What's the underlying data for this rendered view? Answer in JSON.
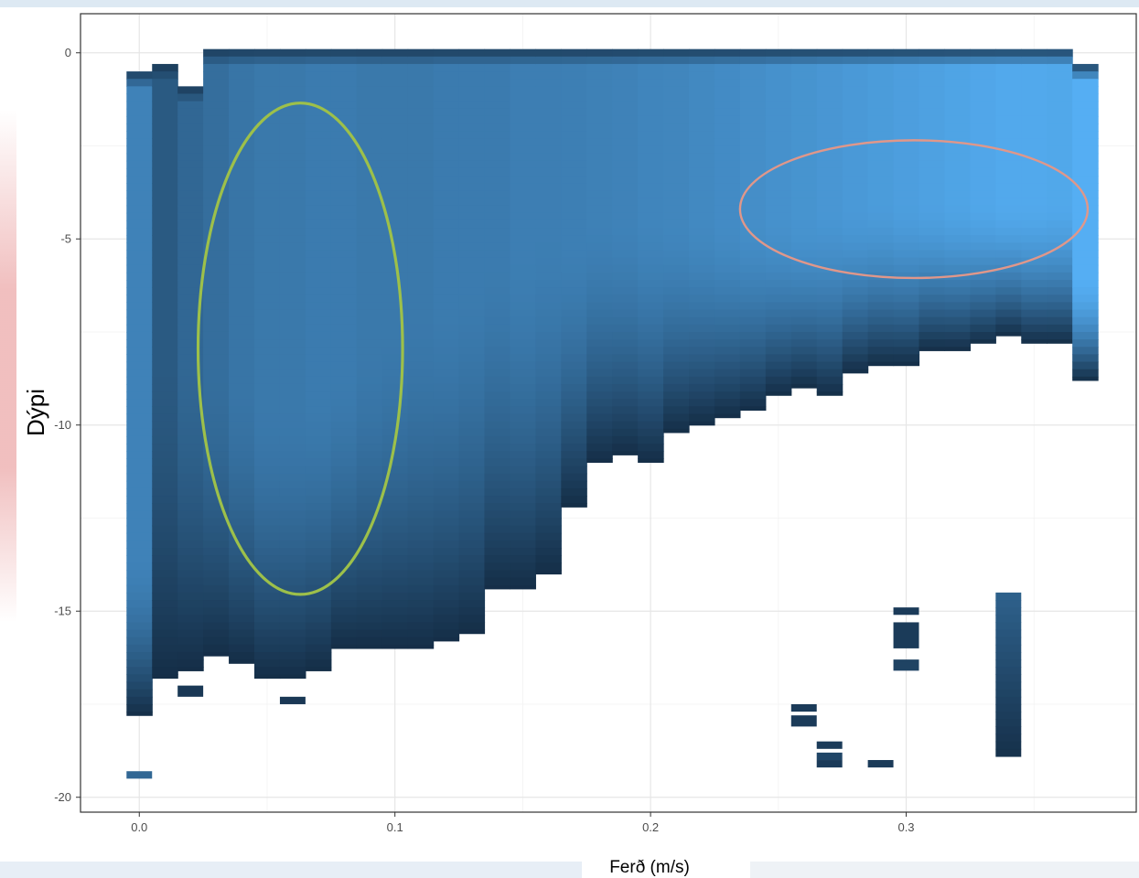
{
  "chart_data": {
    "type": "heatmap",
    "xlabel": "Ferð (m/s)",
    "ylabel": "Dýpi",
    "xlim": [
      -0.023,
      0.39
    ],
    "ylim": [
      -20.4,
      1.05
    ],
    "x_ticks": [
      "0.0",
      "0.1",
      "0.2",
      "0.3"
    ],
    "x_tick_values": [
      0.0,
      0.1,
      0.2,
      0.3
    ],
    "y_ticks": [
      "0",
      "-5",
      "-10",
      "-15",
      "-20"
    ],
    "y_tick_values": [
      0,
      -5,
      -10,
      -15,
      -20
    ],
    "grid": true,
    "bin_width_ms": 0.01,
    "color_low": "#132b43",
    "color_high": "#56b1f7",
    "columns": [
      {
        "x": 0.0,
        "top": -0.5,
        "bottom": -17.8,
        "peak_depth": -13.5,
        "peak": 0.65
      },
      {
        "x": 0.01,
        "top": -0.3,
        "bottom": -16.8,
        "peak_depth": -8.0,
        "peak": 0.35
      },
      {
        "x": 0.02,
        "top": -0.9,
        "bottom": -16.6,
        "peak_depth": -8.0,
        "peak": 0.45
      },
      {
        "x": 0.03,
        "top": 0.1,
        "bottom": -16.2,
        "peak_depth": -8.5,
        "peak": 0.5
      },
      {
        "x": 0.04,
        "top": 0.1,
        "bottom": -16.4,
        "peak_depth": -9.0,
        "peak": 0.55
      },
      {
        "x": 0.05,
        "top": 0.1,
        "bottom": -16.8,
        "peak_depth": -9.5,
        "peak": 0.58
      },
      {
        "x": 0.06,
        "top": 0.1,
        "bottom": -16.8,
        "peak_depth": -9.5,
        "peak": 0.58
      },
      {
        "x": 0.07,
        "top": 0.1,
        "bottom": -16.6,
        "peak_depth": -9.0,
        "peak": 0.6
      },
      {
        "x": 0.08,
        "top": 0.1,
        "bottom": -16.0,
        "peak_depth": -8.5,
        "peak": 0.6
      },
      {
        "x": 0.09,
        "top": 0.1,
        "bottom": -16.0,
        "peak_depth": -8.0,
        "peak": 0.58
      },
      {
        "x": 0.1,
        "top": 0.1,
        "bottom": -16.0,
        "peak_depth": -7.5,
        "peak": 0.58
      },
      {
        "x": 0.11,
        "top": 0.1,
        "bottom": -16.0,
        "peak_depth": -7.0,
        "peak": 0.58
      },
      {
        "x": 0.12,
        "top": 0.1,
        "bottom": -15.8,
        "peak_depth": -6.5,
        "peak": 0.6
      },
      {
        "x": 0.13,
        "top": 0.1,
        "bottom": -15.6,
        "peak_depth": -6.0,
        "peak": 0.6
      },
      {
        "x": 0.14,
        "top": 0.1,
        "bottom": -14.4,
        "peak_depth": -5.5,
        "peak": 0.6
      },
      {
        "x": 0.15,
        "top": 0.1,
        "bottom": -14.4,
        "peak_depth": -5.5,
        "peak": 0.62
      },
      {
        "x": 0.16,
        "top": 0.1,
        "bottom": -14.0,
        "peak_depth": -5.0,
        "peak": 0.62
      },
      {
        "x": 0.17,
        "top": 0.1,
        "bottom": -12.2,
        "peak_depth": -5.0,
        "peak": 0.63
      },
      {
        "x": 0.18,
        "top": 0.1,
        "bottom": -11.0,
        "peak_depth": -4.5,
        "peak": 0.64
      },
      {
        "x": 0.19,
        "top": 0.1,
        "bottom": -10.8,
        "peak_depth": -4.5,
        "peak": 0.65
      },
      {
        "x": 0.2,
        "top": 0.1,
        "bottom": -11.0,
        "peak_depth": -4.5,
        "peak": 0.67
      },
      {
        "x": 0.21,
        "top": 0.1,
        "bottom": -10.2,
        "peak_depth": -4.5,
        "peak": 0.68
      },
      {
        "x": 0.22,
        "top": 0.1,
        "bottom": -10.0,
        "peak_depth": -4.5,
        "peak": 0.7
      },
      {
        "x": 0.23,
        "top": 0.1,
        "bottom": -9.8,
        "peak_depth": -4.5,
        "peak": 0.72
      },
      {
        "x": 0.24,
        "top": 0.1,
        "bottom": -9.6,
        "peak_depth": -4.5,
        "peak": 0.74
      },
      {
        "x": 0.25,
        "top": 0.1,
        "bottom": -9.2,
        "peak_depth": -4.5,
        "peak": 0.76
      },
      {
        "x": 0.26,
        "top": 0.1,
        "bottom": -9.0,
        "peak_depth": -4.5,
        "peak": 0.78
      },
      {
        "x": 0.27,
        "top": 0.1,
        "bottom": -9.2,
        "peak_depth": -4.2,
        "peak": 0.8
      },
      {
        "x": 0.28,
        "top": 0.1,
        "bottom": -8.6,
        "peak_depth": -4.2,
        "peak": 0.82
      },
      {
        "x": 0.29,
        "top": 0.1,
        "bottom": -8.4,
        "peak_depth": -4.0,
        "peak": 0.84
      },
      {
        "x": 0.3,
        "top": 0.1,
        "bottom": -8.4,
        "peak_depth": -4.0,
        "peak": 0.86
      },
      {
        "x": 0.31,
        "top": 0.1,
        "bottom": -8.0,
        "peak_depth": -4.0,
        "peak": 0.88
      },
      {
        "x": 0.32,
        "top": 0.1,
        "bottom": -8.0,
        "peak_depth": -4.0,
        "peak": 0.9
      },
      {
        "x": 0.33,
        "top": 0.1,
        "bottom": -7.8,
        "peak_depth": -4.0,
        "peak": 0.92
      },
      {
        "x": 0.34,
        "top": 0.1,
        "bottom": -7.6,
        "peak_depth": -4.0,
        "peak": 0.94
      },
      {
        "x": 0.35,
        "top": 0.1,
        "bottom": -7.8,
        "peak_depth": -4.0,
        "peak": 0.94
      },
      {
        "x": 0.36,
        "top": 0.1,
        "bottom": -7.8,
        "peak_depth": -4.0,
        "peak": 0.93
      },
      {
        "x": 0.37,
        "top": -0.3,
        "bottom": -8.8,
        "peak_depth": -6.0,
        "peak": 0.98
      }
    ],
    "isolated_cells": [
      {
        "x": 0.0,
        "top": -19.3,
        "bottom": -19.5,
        "value": 0.45
      },
      {
        "x": 0.02,
        "top": -17.0,
        "bottom": -17.3,
        "value": 0.1
      },
      {
        "x": 0.06,
        "top": -17.3,
        "bottom": -17.5,
        "value": 0.1
      },
      {
        "x": 0.26,
        "top": -17.5,
        "bottom": -17.7,
        "value": 0.12
      },
      {
        "x": 0.26,
        "top": -17.8,
        "bottom": -18.1,
        "value": 0.12
      },
      {
        "x": 0.27,
        "top": -18.5,
        "bottom": -18.7,
        "value": 0.12
      },
      {
        "x": 0.27,
        "top": -18.8,
        "bottom": -19.0,
        "value": 0.2
      },
      {
        "x": 0.27,
        "top": -19.0,
        "bottom": -19.2,
        "value": 0.12
      },
      {
        "x": 0.29,
        "top": -19.0,
        "bottom": -19.2,
        "value": 0.12
      },
      {
        "x": 0.3,
        "top": -14.9,
        "bottom": -15.1,
        "value": 0.12
      },
      {
        "x": 0.3,
        "top": -15.3,
        "bottom": -16.0,
        "value": 0.12
      },
      {
        "x": 0.3,
        "top": -16.3,
        "bottom": -16.6,
        "value": 0.18
      }
    ],
    "vertical_segments": [
      {
        "x": 0.34,
        "top": -14.5,
        "bottom": -18.8,
        "top_value": 0.4,
        "bottom_value": 0.05
      }
    ],
    "annotations": [
      {
        "shape": "ellipse",
        "color": "#9dc04a",
        "cx": 0.063,
        "cy": -7.95,
        "rx": 0.04,
        "ry": 6.6
      },
      {
        "shape": "ellipse",
        "color": "#e0978a",
        "cx": 0.303,
        "cy": -4.2,
        "rx": 0.068,
        "ry": 1.85
      }
    ]
  }
}
